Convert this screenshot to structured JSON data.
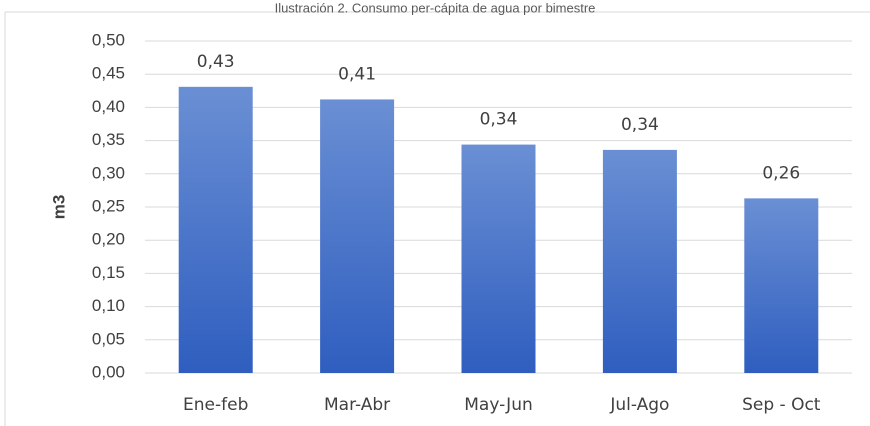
{
  "chart_data": {
    "type": "bar",
    "title": "Ilustración 2. Consumo per-cápita de agua por bimestre",
    "y_label": "m3",
    "categories": [
      "Ene-feb",
      "Mar-Abr",
      "May-Jun",
      "Jul-Ago",
      "Sep - Oct"
    ],
    "values": [
      0.431,
      0.412,
      0.344,
      0.336,
      0.263
    ],
    "value_labels": [
      "0,43",
      "0,41",
      "0,34",
      "0,34",
      "0,26"
    ],
    "color": "#4472c4",
    "ylim": [
      0,
      0.5
    ],
    "yticks": [
      {
        "value": 0,
        "label": "0,00"
      },
      {
        "value": 0.05,
        "label": "0,05"
      },
      {
        "value": 0.1,
        "label": "0,10"
      },
      {
        "value": 0.15,
        "label": "0,15"
      },
      {
        "value": 0.2,
        "label": "0,20"
      },
      {
        "value": 0.25,
        "label": "0,25"
      },
      {
        "value": 0.3,
        "label": "0,30"
      },
      {
        "value": 0.35,
        "label": "0,35"
      },
      {
        "value": 0.4,
        "label": "0,40"
      },
      {
        "value": 0.45,
        "label": "0,45"
      },
      {
        "value": 0.5,
        "label": "0,50"
      }
    ],
    "grid": true
  }
}
